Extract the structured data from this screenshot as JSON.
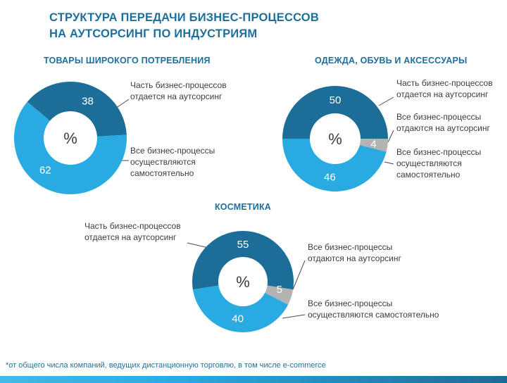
{
  "page": {
    "title_line1": "СТРУКТУРА ПЕРЕДАЧИ БИЗНЕС-ПРОЦЕССОВ",
    "title_line2": "НА АУТСОРСИНГ ПО ИНДУСТРИЯМ",
    "footnote": "*от общего числа компаний, ведущих дистанционную торговлю, в том числе e-commerce"
  },
  "colors": {
    "accent_dark_blue": "#1d6d99",
    "accent_light_blue": "#29abe2",
    "neutral_gray": "#b3b3b3",
    "title_blue": "#1d6f9c",
    "text_dark": "#3c3c3b"
  },
  "chart_data": [
    {
      "type": "pie",
      "donut": true,
      "units": "%",
      "title": "ТОВАРЫ ШИРОКОГО ПОТРЕБЛЕНИЯ",
      "center_label": "%",
      "legend_position": "callouts",
      "segments": [
        {
          "label": "Часть бизнес-процессов отдается на аутсорсинг",
          "value": 38,
          "color": "#1d6d99"
        },
        {
          "label": "Все бизнес-процессы осуществляются самостоятельно",
          "value": 62,
          "color": "#29abe2"
        }
      ]
    },
    {
      "type": "pie",
      "donut": true,
      "units": "%",
      "title": "ОДЕЖДА, ОБУВЬ И АКСЕССУАРЫ",
      "center_label": "%",
      "legend_position": "callouts",
      "segments": [
        {
          "label": "Часть бизнес-процессов отдается на аутсорсинг",
          "value": 50,
          "color": "#1d6d99"
        },
        {
          "label": "Все бизнес-процессы отдаются на аутсорсинг",
          "value": 4,
          "color": "#b3b3b3"
        },
        {
          "label": "Все бизнес-процессы осуществляются самостоятельно",
          "value": 46,
          "color": "#29abe2"
        }
      ]
    },
    {
      "type": "pie",
      "donut": true,
      "units": "%",
      "title": "КОСМЕТИКА",
      "center_label": "%",
      "legend_position": "callouts",
      "segments": [
        {
          "label": "Часть бизнес-процессов отдается на аутсорсинг",
          "value": 55,
          "color": "#1d6d99"
        },
        {
          "label": "Все бизнес-процессы отдаются на аутсорсинг",
          "value": 5,
          "color": "#b3b3b3"
        },
        {
          "label": "Все бизнес-процессы осуществляются самостоятельно",
          "value": 40,
          "color": "#29abe2"
        }
      ]
    }
  ]
}
